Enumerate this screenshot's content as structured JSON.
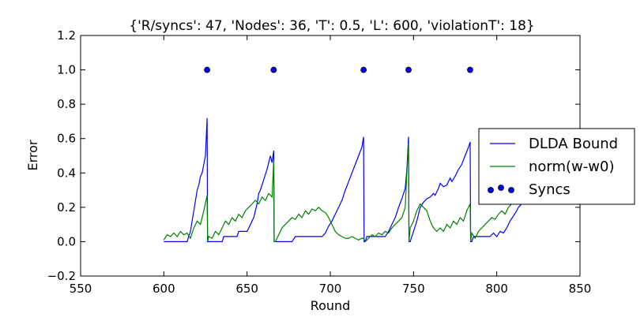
{
  "chart_data": {
    "type": "line",
    "title": "{'R/syncs': 47, 'Nodes': 36, 'T': 0.5, 'L': 600, 'violationT': 18}",
    "xlabel": "Round",
    "ylabel": "Error",
    "xlim": [
      550,
      850
    ],
    "ylim": [
      -0.2,
      1.2
    ],
    "xticks": [
      550,
      600,
      650,
      700,
      750,
      800,
      850
    ],
    "xtick_labels": [
      "550",
      "600",
      "650",
      "700",
      "750",
      "800",
      "850"
    ],
    "yticks": [
      -0.2,
      0.0,
      0.2,
      0.4,
      0.6,
      0.8,
      1.0,
      1.2
    ],
    "ytick_labels": [
      "−0.2",
      "0.0",
      "0.2",
      "0.4",
      "0.6",
      "0.8",
      "1.0",
      "1.2"
    ],
    "grid": false,
    "legend_position": "right",
    "series": [
      {
        "name": "DLDA Bound",
        "kind": "line",
        "color": "#0000ff",
        "points": [
          [
            600,
            0.0
          ],
          [
            614,
            0.0
          ],
          [
            615,
            0.03
          ],
          [
            616,
            0.06
          ],
          [
            617,
            0.12
          ],
          [
            618,
            0.18
          ],
          [
            619,
            0.24
          ],
          [
            620,
            0.3
          ],
          [
            621,
            0.33
          ],
          [
            622,
            0.38
          ],
          [
            623,
            0.4
          ],
          [
            624,
            0.45
          ],
          [
            625,
            0.5
          ],
          [
            626,
            0.72
          ],
          [
            626.3,
            0.0
          ],
          [
            627,
            0.0
          ],
          [
            635,
            0.0
          ],
          [
            636,
            0.03
          ],
          [
            644,
            0.03
          ],
          [
            645,
            0.06
          ],
          [
            650,
            0.06
          ],
          [
            652,
            0.1
          ],
          [
            654,
            0.14
          ],
          [
            655,
            0.18
          ],
          [
            656,
            0.22
          ],
          [
            657,
            0.28
          ],
          [
            658,
            0.3
          ],
          [
            660,
            0.36
          ],
          [
            662,
            0.42
          ],
          [
            664,
            0.5
          ],
          [
            665,
            0.46
          ],
          [
            666,
            0.53
          ],
          [
            666.3,
            0.0
          ],
          [
            667,
            0.0
          ],
          [
            677,
            0.0
          ],
          [
            679,
            0.03
          ],
          [
            695,
            0.03
          ],
          [
            697,
            0.05
          ],
          [
            699,
            0.09
          ],
          [
            701,
            0.12
          ],
          [
            703,
            0.16
          ],
          [
            705,
            0.2
          ],
          [
            707,
            0.24
          ],
          [
            709,
            0.3
          ],
          [
            711,
            0.35
          ],
          [
            713,
            0.4
          ],
          [
            715,
            0.45
          ],
          [
            717,
            0.5
          ],
          [
            719,
            0.55
          ],
          [
            720,
            0.61
          ],
          [
            720.3,
            0.0
          ],
          [
            721,
            0.0
          ],
          [
            722,
            0.03
          ],
          [
            733,
            0.03
          ],
          [
            735,
            0.06
          ],
          [
            737,
            0.1
          ],
          [
            739,
            0.14
          ],
          [
            741,
            0.2
          ],
          [
            743,
            0.25
          ],
          [
            745,
            0.31
          ],
          [
            746,
            0.42
          ],
          [
            747,
            0.61
          ],
          [
            747.3,
            0.0
          ],
          [
            748,
            0.0
          ],
          [
            750,
            0.06
          ],
          [
            752,
            0.12
          ],
          [
            754,
            0.2
          ],
          [
            756,
            0.23
          ],
          [
            758,
            0.25
          ],
          [
            760,
            0.26
          ],
          [
            762,
            0.28
          ],
          [
            763,
            0.27
          ],
          [
            765,
            0.31
          ],
          [
            766,
            0.34
          ],
          [
            768,
            0.32
          ],
          [
            770,
            0.33
          ],
          [
            772,
            0.37
          ],
          [
            773,
            0.35
          ],
          [
            775,
            0.38
          ],
          [
            777,
            0.42
          ],
          [
            779,
            0.45
          ],
          [
            781,
            0.5
          ],
          [
            783,
            0.55
          ],
          [
            784,
            0.58
          ],
          [
            784.3,
            0.0
          ],
          [
            785,
            0.0
          ],
          [
            786,
            0.03
          ],
          [
            796,
            0.03
          ],
          [
            798,
            0.05
          ],
          [
            800,
            0.03
          ],
          [
            802,
            0.06
          ],
          [
            804,
            0.05
          ],
          [
            806,
            0.08
          ],
          [
            808,
            0.12
          ],
          [
            810,
            0.15
          ],
          [
            812,
            0.18
          ],
          [
            813,
            0.2
          ],
          [
            815,
            0.22
          ]
        ]
      },
      {
        "name": "norm(w-w0)",
        "kind": "line",
        "color": "#008000",
        "points": [
          [
            600,
            0.01
          ],
          [
            602,
            0.04
          ],
          [
            604,
            0.03
          ],
          [
            606,
            0.05
          ],
          [
            608,
            0.03
          ],
          [
            610,
            0.06
          ],
          [
            612,
            0.04
          ],
          [
            614,
            0.05
          ],
          [
            616,
            0.02
          ],
          [
            618,
            0.08
          ],
          [
            620,
            0.12
          ],
          [
            622,
            0.1
          ],
          [
            624,
            0.18
          ],
          [
            626,
            0.27
          ],
          [
            626.3,
            0.0
          ],
          [
            627,
            0.03
          ],
          [
            629,
            0.02
          ],
          [
            631,
            0.06
          ],
          [
            633,
            0.04
          ],
          [
            635,
            0.08
          ],
          [
            637,
            0.12
          ],
          [
            639,
            0.1
          ],
          [
            641,
            0.14
          ],
          [
            643,
            0.12
          ],
          [
            645,
            0.16
          ],
          [
            647,
            0.14
          ],
          [
            649,
            0.18
          ],
          [
            651,
            0.2
          ],
          [
            653,
            0.22
          ],
          [
            655,
            0.24
          ],
          [
            657,
            0.22
          ],
          [
            659,
            0.26
          ],
          [
            661,
            0.24
          ],
          [
            663,
            0.28
          ],
          [
            665,
            0.26
          ],
          [
            666,
            0.47
          ],
          [
            666.3,
            0.0
          ],
          [
            667,
            0.0
          ],
          [
            669,
            0.04
          ],
          [
            671,
            0.08
          ],
          [
            673,
            0.1
          ],
          [
            675,
            0.12
          ],
          [
            677,
            0.14
          ],
          [
            679,
            0.13
          ],
          [
            681,
            0.16
          ],
          [
            683,
            0.14
          ],
          [
            685,
            0.18
          ],
          [
            687,
            0.16
          ],
          [
            689,
            0.19
          ],
          [
            691,
            0.18
          ],
          [
            693,
            0.2
          ],
          [
            695,
            0.18
          ],
          [
            697,
            0.17
          ],
          [
            699,
            0.14
          ],
          [
            701,
            0.1
          ],
          [
            703,
            0.06
          ],
          [
            705,
            0.04
          ],
          [
            707,
            0.03
          ],
          [
            709,
            0.02
          ],
          [
            711,
            0.02
          ],
          [
            713,
            0.03
          ],
          [
            715,
            0.02
          ],
          [
            717,
            0.01
          ],
          [
            719,
            0.02
          ],
          [
            720,
            0.02
          ],
          [
            721,
            0.0
          ],
          [
            723,
            0.02
          ],
          [
            725,
            0.04
          ],
          [
            727,
            0.03
          ],
          [
            729,
            0.05
          ],
          [
            731,
            0.04
          ],
          [
            733,
            0.06
          ],
          [
            735,
            0.05
          ],
          [
            737,
            0.08
          ],
          [
            739,
            0.1
          ],
          [
            741,
            0.12
          ],
          [
            743,
            0.14
          ],
          [
            745,
            0.2
          ],
          [
            746,
            0.4
          ],
          [
            747,
            0.57
          ],
          [
            747.3,
            0.0
          ],
          [
            748,
            0.08
          ],
          [
            750,
            0.12
          ],
          [
            752,
            0.18
          ],
          [
            754,
            0.22
          ],
          [
            756,
            0.2
          ],
          [
            758,
            0.18
          ],
          [
            760,
            0.12
          ],
          [
            762,
            0.08
          ],
          [
            764,
            0.06
          ],
          [
            766,
            0.08
          ],
          [
            768,
            0.06
          ],
          [
            770,
            0.1
          ],
          [
            772,
            0.08
          ],
          [
            774,
            0.12
          ],
          [
            776,
            0.1
          ],
          [
            778,
            0.14
          ],
          [
            780,
            0.12
          ],
          [
            782,
            0.18
          ],
          [
            784,
            0.22
          ],
          [
            784.3,
            0.0
          ],
          [
            785,
            0.05
          ],
          [
            787,
            0.02
          ],
          [
            789,
            0.06
          ],
          [
            791,
            0.08
          ],
          [
            793,
            0.1
          ],
          [
            795,
            0.12
          ],
          [
            797,
            0.14
          ],
          [
            799,
            0.13
          ],
          [
            801,
            0.16
          ],
          [
            803,
            0.18
          ],
          [
            805,
            0.16
          ],
          [
            807,
            0.2
          ],
          [
            809,
            0.22
          ],
          [
            811,
            0.24
          ],
          [
            813,
            0.25
          ]
        ]
      },
      {
        "name": "Syncs",
        "kind": "scatter",
        "color": "#0000ff",
        "x": [
          626,
          666,
          720,
          747,
          784
        ],
        "y": [
          1.0,
          1.0,
          1.0,
          1.0,
          1.0
        ]
      }
    ]
  }
}
